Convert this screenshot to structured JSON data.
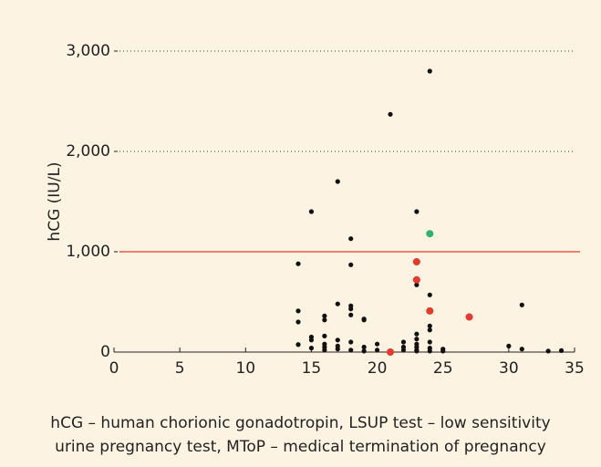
{
  "chart_data": {
    "type": "scatter",
    "ylabel": "hCG (IU/L)",
    "xlim": [
      0,
      35
    ],
    "xticks": [
      0,
      5,
      10,
      15,
      20,
      25,
      30,
      35
    ],
    "ylim": [
      0,
      3000
    ],
    "yticks": [
      0,
      {
        "value": 1000,
        "label": "1,000"
      },
      {
        "value": 2000,
        "label": "2,000"
      },
      {
        "value": 3000,
        "label": "3,000"
      }
    ],
    "grid": true,
    "grid_style": "dotted",
    "threshold": 1000,
    "threshold_color": "#e8392f",
    "series": [
      {
        "color": "#111111",
        "x": [
          14,
          14,
          14,
          14,
          15,
          15,
          15,
          15,
          16,
          16,
          16,
          16,
          16,
          16,
          17,
          17,
          17,
          17,
          17,
          18,
          18,
          18,
          18,
          18,
          18,
          18,
          19,
          19,
          19,
          19,
          20,
          20,
          21,
          21,
          22,
          22,
          22,
          23,
          23,
          23,
          23,
          23,
          23,
          23,
          23,
          24,
          24,
          24,
          24,
          24,
          24,
          24,
          24,
          25,
          25,
          30,
          31,
          31,
          33,
          34
        ],
        "values": [
          880,
          410,
          300,
          75,
          1400,
          150,
          120,
          40,
          360,
          320,
          160,
          80,
          50,
          20,
          1700,
          480,
          120,
          60,
          30,
          1130,
          870,
          460,
          430,
          370,
          100,
          20,
          330,
          320,
          50,
          10,
          80,
          20,
          2370,
          10,
          100,
          50,
          20,
          1400,
          670,
          180,
          130,
          80,
          50,
          20,
          10,
          2800,
          570,
          420,
          260,
          220,
          100,
          40,
          10,
          30,
          10,
          60,
          470,
          30,
          10,
          15
        ]
      },
      {
        "color": "#e8392f",
        "x": [
          21,
          23,
          23,
          24,
          27
        ],
        "values": [
          0,
          900,
          720,
          410,
          350
        ]
      },
      {
        "color": "#2db36b",
        "x": [
          24
        ],
        "values": [
          1180
        ]
      }
    ],
    "caption": [
      "hCG – human chorionic gonadotropin, LSUP test – low sensitivity",
      "urine pregnancy test, MToP – medical termination of pregnancy"
    ]
  }
}
